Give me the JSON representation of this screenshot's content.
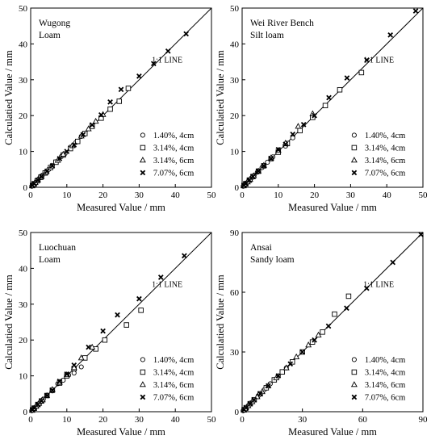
{
  "legend": [
    {
      "label": "1.40%, 4cm",
      "marker": "circle"
    },
    {
      "label": "3.14%, 4cm",
      "marker": "square"
    },
    {
      "label": "3.14%, 6cm",
      "marker": "triangle"
    },
    {
      "label": "7.07%, 6cm",
      "marker": "cross"
    }
  ],
  "chart_data": [
    {
      "type": "scatter",
      "site": "Wugong",
      "soil": "Loam",
      "xlabel": "Measured Value / mm",
      "ylabel": "Calculatied Value / mm",
      "xlim": [
        0,
        50
      ],
      "ylim": [
        0,
        50
      ],
      "xticks": [
        0,
        10,
        20,
        30,
        40,
        50
      ],
      "yticks": [
        0,
        10,
        20,
        30,
        40,
        50
      ],
      "line_label": "1:1 LINE",
      "series": [
        {
          "name": "1.40%, 4cm",
          "x": [
            0.3,
            0.6,
            1.0,
            1.5,
            2.0,
            2.5,
            3.2,
            4.0,
            5.0,
            6.0,
            7.0,
            8.5,
            9.5,
            11.0,
            12.5,
            14.0
          ],
          "y": [
            0.3,
            0.6,
            1.0,
            1.5,
            2.1,
            2.6,
            3.3,
            4.1,
            5.0,
            6.0,
            7.1,
            8.6,
            9.4,
            11.2,
            12.5,
            14.2
          ]
        },
        {
          "name": "3.14%, 4cm",
          "x": [
            0.5,
            1.0,
            1.8,
            2.8,
            4.0,
            5.5,
            7.0,
            9.0,
            11.0,
            13.0,
            15.0,
            17.0,
            19.5,
            22.0,
            24.5,
            27.0
          ],
          "y": [
            0.5,
            1.0,
            1.8,
            2.8,
            4.0,
            5.5,
            7.0,
            9.0,
            10.8,
            12.8,
            15.0,
            17.0,
            19.3,
            21.8,
            24.0,
            27.6
          ]
        },
        {
          "name": "3.14%, 6cm",
          "x": [
            0.4,
            0.8,
            1.3,
            2.0,
            3.0,
            4.2,
            5.8,
            7.5,
            9.0,
            11.5,
            14.0,
            16.0,
            18.0,
            20.0
          ],
          "y": [
            0.4,
            0.8,
            1.3,
            2.0,
            3.0,
            4.2,
            5.9,
            7.5,
            9.2,
            11.6,
            14.3,
            16.3,
            18.4,
            20.3
          ]
        },
        {
          "name": "7.07%, 6cm",
          "x": [
            0.5,
            1.0,
            2.0,
            3.0,
            4.5,
            6.0,
            8.0,
            10.0,
            12.0,
            14.5,
            17.0,
            19.5,
            22.0,
            25.0,
            30.0,
            34.0,
            38.0,
            43.0
          ],
          "y": [
            0.5,
            1.0,
            2.0,
            3.0,
            4.5,
            6.0,
            8.0,
            10.0,
            11.8,
            14.7,
            17.4,
            20.2,
            23.8,
            27.3,
            31.0,
            34.5,
            38.0,
            42.8
          ]
        }
      ]
    },
    {
      "type": "scatter",
      "site": "Wei River Bench",
      "soil": "Silt loam",
      "xlabel": "Measured Value / mm",
      "ylabel": "Calculatied Value / mm",
      "xlim": [
        0,
        50
      ],
      "ylim": [
        0,
        50
      ],
      "xticks": [
        0,
        10,
        20,
        30,
        40,
        50
      ],
      "yticks": [
        0,
        10,
        20,
        30,
        40,
        50
      ],
      "line_label": "1:1 LINE",
      "series": [
        {
          "name": "1.40%, 4cm",
          "x": [
            0.3,
            0.7,
            1.2,
            1.8,
            2.5,
            3.3,
            4.2,
            5.5,
            7.0,
            8.5,
            10.0,
            12.0,
            14.0
          ],
          "y": [
            0.3,
            0.7,
            1.2,
            1.8,
            2.5,
            3.3,
            4.2,
            5.5,
            7.0,
            8.5,
            10.0,
            11.5,
            13.8
          ]
        },
        {
          "name": "3.14%, 4cm",
          "x": [
            0.5,
            1.0,
            2.0,
            3.0,
            4.5,
            6.0,
            8.0,
            10.0,
            12.5,
            16.0,
            19.5,
            23.0,
            27.0,
            33.0
          ],
          "y": [
            0.5,
            1.0,
            2.0,
            3.0,
            4.5,
            6.0,
            8.0,
            9.8,
            12.2,
            15.8,
            19.5,
            22.8,
            27.2,
            32.0
          ]
        },
        {
          "name": "3.14%, 6cm",
          "x": [
            0.4,
            0.9,
            1.5,
            2.2,
            3.2,
            4.5,
            6.0,
            8.0,
            10.0,
            12.0,
            15.5,
            19.5
          ],
          "y": [
            0.4,
            0.9,
            1.5,
            2.2,
            3.2,
            4.5,
            6.1,
            8.2,
            10.3,
            12.3,
            17.0,
            20.5
          ]
        },
        {
          "name": "7.07%, 6cm",
          "x": [
            0.5,
            1.0,
            2.0,
            3.0,
            4.5,
            6.0,
            8.0,
            10.0,
            12.0,
            14.0,
            17.0,
            20.0,
            24.0,
            29.0,
            34.5,
            41.0,
            48.0
          ],
          "y": [
            0.5,
            1.0,
            2.0,
            3.0,
            4.5,
            6.0,
            8.0,
            10.5,
            12.0,
            14.8,
            17.5,
            20.0,
            25.0,
            30.5,
            35.5,
            42.5,
            49.2
          ]
        }
      ]
    },
    {
      "type": "scatter",
      "site": "Luochuan",
      "soil": "Loam",
      "xlabel": "Measured Value / mm",
      "ylabel": "Calculatied Value / mm",
      "xlim": [
        0,
        50
      ],
      "ylim": [
        0,
        50
      ],
      "xticks": [
        0,
        10,
        20,
        30,
        40,
        50
      ],
      "yticks": [
        0,
        10,
        20,
        30,
        40,
        50
      ],
      "line_label": "1:1 LINE",
      "series": [
        {
          "name": "1.40%, 4cm",
          "x": [
            0.3,
            0.7,
            1.2,
            1.8,
            2.5,
            3.5,
            4.5,
            6.0,
            7.5,
            9.0,
            10.5,
            12.0,
            14.0
          ],
          "y": [
            0.3,
            0.7,
            1.2,
            1.8,
            2.5,
            3.5,
            4.5,
            5.8,
            7.8,
            8.8,
            10.2,
            10.8,
            12.5
          ]
        },
        {
          "name": "3.14%, 4cm",
          "x": [
            0.5,
            1.0,
            2.0,
            3.0,
            4.5,
            6.0,
            8.0,
            10.0,
            12.0,
            15.0,
            18.0,
            20.5,
            26.5,
            30.5
          ],
          "y": [
            0.5,
            1.0,
            2.0,
            3.0,
            4.5,
            6.0,
            8.0,
            10.0,
            12.0,
            15.0,
            17.5,
            20.0,
            24.2,
            28.3
          ]
        },
        {
          "name": "3.14%, 6cm",
          "x": [
            0.4,
            0.9,
            1.5,
            2.3,
            3.3,
            4.5,
            6.0,
            8.0,
            10.0,
            12.0,
            14.0,
            17.0
          ],
          "y": [
            0.4,
            0.9,
            1.5,
            2.3,
            3.3,
            4.5,
            6.2,
            8.2,
            10.3,
            12.3,
            15.0,
            18.0
          ]
        },
        {
          "name": "7.07%, 6cm",
          "x": [
            0.5,
            1.0,
            2.0,
            3.0,
            4.5,
            6.0,
            8.0,
            10.0,
            12.0,
            16.0,
            20.0,
            24.0,
            30.0,
            36.0,
            42.5
          ],
          "y": [
            0.5,
            1.0,
            2.0,
            3.0,
            4.5,
            6.0,
            8.5,
            10.5,
            13.0,
            18.0,
            22.5,
            27.0,
            31.5,
            37.5,
            43.5
          ]
        }
      ]
    },
    {
      "type": "scatter",
      "site": "Ansai",
      "soil": "Sandy loam",
      "xlabel": "Measured Value / mm",
      "ylabel": "Calculatied Value / mm",
      "xlim": [
        0,
        90
      ],
      "ylim": [
        0,
        90
      ],
      "xticks": [
        0,
        30,
        60,
        90
      ],
      "yticks": [
        0,
        30,
        60,
        90
      ],
      "line_label": "1:1 LINE",
      "series": [
        {
          "name": "1.40%, 4cm",
          "x": [
            0.5,
            1.0,
            2.0,
            3.0,
            4.5,
            6.0,
            8.0,
            11.0,
            14.0,
            18.0,
            22.0
          ],
          "y": [
            0.5,
            1.0,
            2.0,
            3.0,
            4.5,
            6.0,
            8.0,
            11.0,
            14.0,
            18.0,
            22.0
          ]
        },
        {
          "name": "3.14%, 4cm",
          "x": [
            1.0,
            2.0,
            4.0,
            6.0,
            9.0,
            12.0,
            16.0,
            20.0,
            25.0,
            30.0,
            35.0,
            40.0,
            46.0,
            53.0
          ],
          "y": [
            1.0,
            2.0,
            4.0,
            6.0,
            9.0,
            12.0,
            16.0,
            20.0,
            25.0,
            30.0,
            35.0,
            40.0,
            49.0,
            58.0
          ]
        },
        {
          "name": "3.14%, 6cm",
          "x": [
            0.8,
            1.5,
            3.0,
            5.0,
            7.5,
            10.0,
            13.0,
            17.0,
            22.0,
            27.0,
            33.0,
            38.0
          ],
          "y": [
            0.8,
            1.5,
            3.0,
            5.0,
            7.5,
            10.0,
            13.0,
            17.0,
            22.0,
            27.5,
            33.5,
            38.5
          ]
        },
        {
          "name": "7.07%, 6cm",
          "x": [
            1.0,
            2.0,
            4.0,
            6.0,
            9.0,
            13.0,
            18.0,
            24.0,
            30.0,
            36.0,
            43.0,
            52.0,
            62.0,
            75.0,
            89.0
          ],
          "y": [
            1.0,
            2.0,
            4.0,
            6.0,
            9.0,
            13.0,
            18.0,
            24.0,
            30.0,
            36.0,
            43.0,
            52.0,
            62.0,
            75.0,
            89.0
          ]
        }
      ]
    }
  ]
}
